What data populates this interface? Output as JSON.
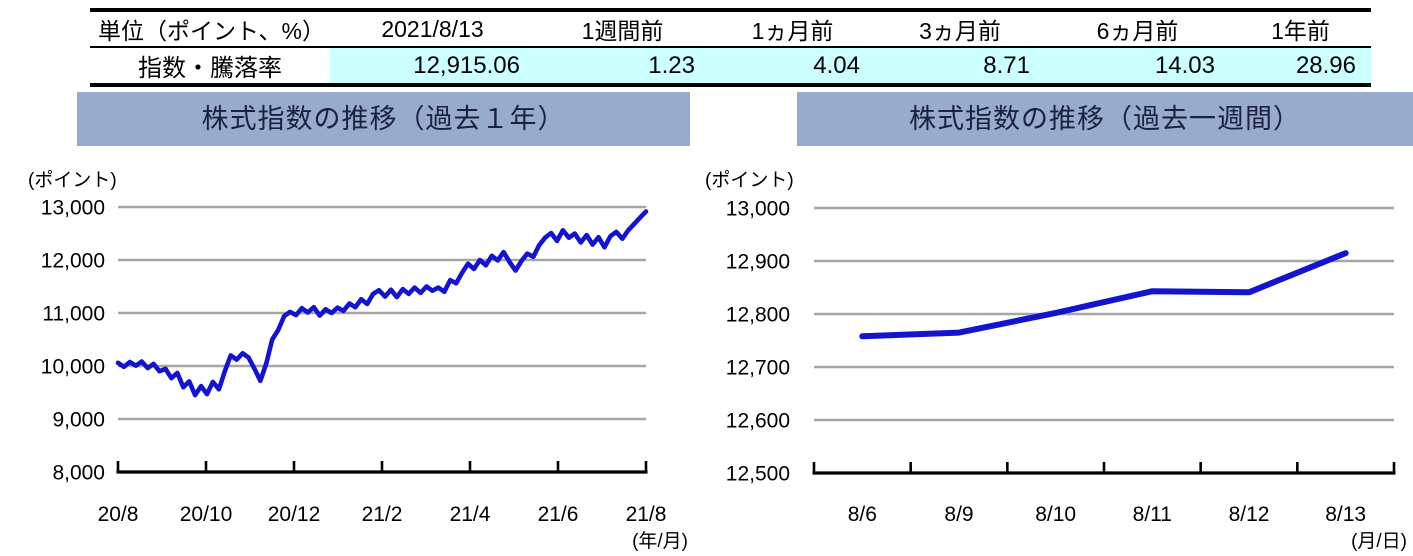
{
  "table": {
    "headers": [
      "単位（ポイント、%）",
      "2021/8/13",
      "1週間前",
      "1ヵ月前",
      "3ヵ月前",
      "6ヵ月前",
      "1年前"
    ],
    "row_label": "指数・騰落率",
    "values": [
      "12,915.06",
      "1.23",
      "4.04",
      "8.71",
      "14.03",
      "28.96"
    ]
  },
  "colors": {
    "line": "#1414CC",
    "grid": "#A6A6A6",
    "axis": "#000000",
    "title_bg": "#98ABCD",
    "value_cell_bg": "#CCFFFF"
  },
  "chart_data": [
    {
      "type": "line",
      "title": "株式指数の推移（過去１年）",
      "ylabel": "(ポイント)",
      "xlabel": "(年/月)",
      "ylim": [
        8000,
        13000
      ],
      "grid": true,
      "legend": false,
      "y_tick_labels": [
        "13,000",
        "12,000",
        "11,000",
        "10,000",
        "9,000",
        "8,000"
      ],
      "y_tick_values": [
        13000,
        12000,
        11000,
        10000,
        9000,
        8000
      ],
      "x_tick_labels": [
        "20/8",
        "20/10",
        "20/12",
        "21/2",
        "21/4",
        "21/6",
        "21/8"
      ],
      "x_label_placement": "on-tick",
      "x_note": "daily index values, evenly spaced from 2020/8/13 to 2021/8/13",
      "series": [
        {
          "name": "株式指数",
          "values": [
            10060,
            9985,
            10075,
            10005,
            10085,
            9960,
            10040,
            9900,
            9945,
            9770,
            9870,
            9600,
            9710,
            9450,
            9620,
            9470,
            9700,
            9560,
            9900,
            10200,
            10120,
            10240,
            10160,
            9950,
            9720,
            10050,
            10500,
            10680,
            10940,
            11020,
            10960,
            11090,
            11010,
            11110,
            10950,
            11070,
            11000,
            11100,
            11040,
            11180,
            11110,
            11260,
            11170,
            11360,
            11430,
            11310,
            11440,
            11300,
            11450,
            11360,
            11480,
            11380,
            11500,
            11420,
            11480,
            11400,
            11620,
            11560,
            11760,
            11930,
            11830,
            12000,
            11900,
            12080,
            11990,
            12150,
            11960,
            11800,
            11980,
            12120,
            12060,
            12280,
            12420,
            12510,
            12360,
            12560,
            12420,
            12500,
            12330,
            12470,
            12290,
            12430,
            12240,
            12450,
            12530,
            12400,
            12560,
            12680,
            12800,
            12915
          ]
        }
      ]
    },
    {
      "type": "line",
      "title": "株式指数の推移（過去一週間）",
      "ylabel": "(ポイント)",
      "xlabel": "(月/日)",
      "ylim": [
        12500,
        13000
      ],
      "grid": true,
      "legend": false,
      "y_tick_labels": [
        "13,000",
        "12,900",
        "12,800",
        "12,700",
        "12,600",
        "12,500"
      ],
      "y_tick_values": [
        13000,
        12900,
        12800,
        12700,
        12600,
        12500
      ],
      "x_tick_labels": [
        "8/6",
        "8/9",
        "8/10",
        "8/11",
        "8/12",
        "8/13"
      ],
      "x_label_placement": "between-ticks",
      "series": [
        {
          "name": "株式指数",
          "values": [
            12758,
            12765,
            12802,
            12843,
            12841,
            12915
          ]
        }
      ]
    }
  ]
}
